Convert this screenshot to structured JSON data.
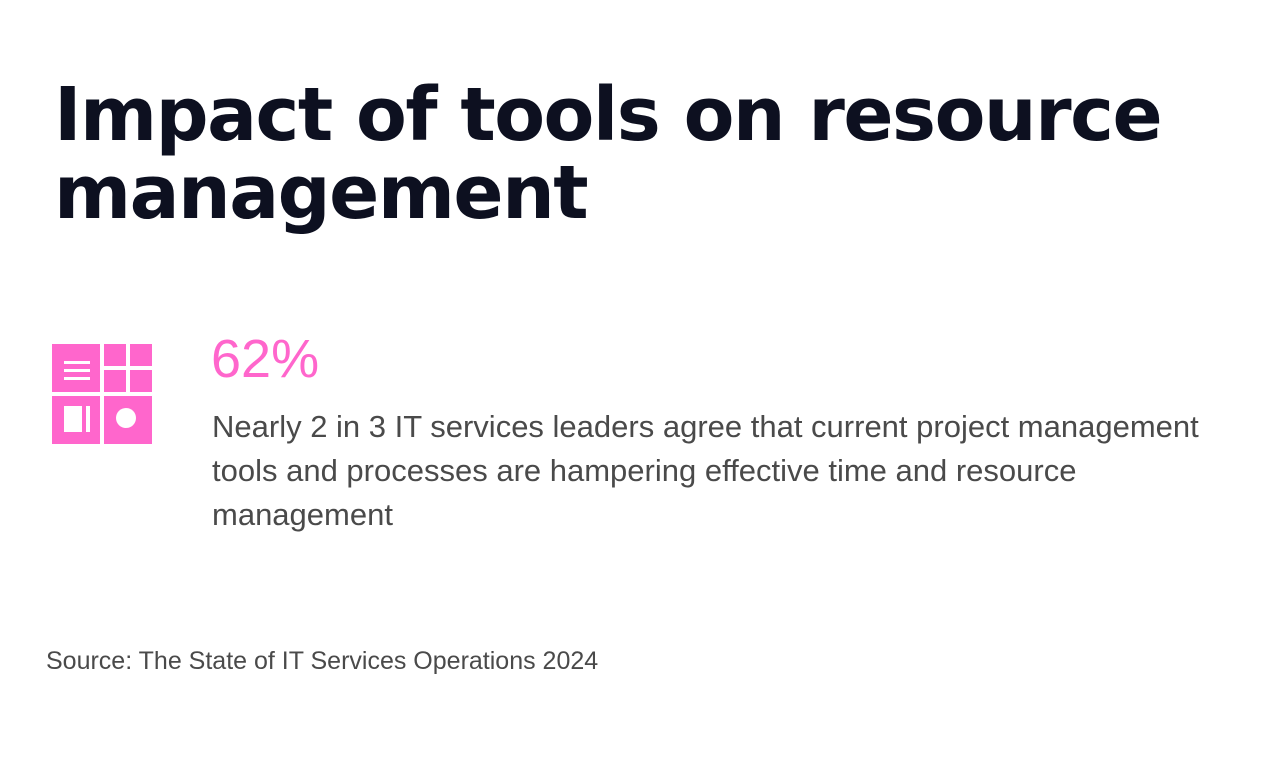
{
  "title": "Impact of tools on resource management",
  "stat": {
    "value": "62%",
    "description": "Nearly 2 in 3 IT services leaders agree that current project management tools and processes are hampering effective time and resource management",
    "icon": "project-board-icon",
    "accent_color": "#ff66cc"
  },
  "source": "Source: The State of IT Services Operations 2024",
  "colors": {
    "title": "#0d1020",
    "body_text": "#4a4a4a",
    "background": "#ffffff"
  }
}
